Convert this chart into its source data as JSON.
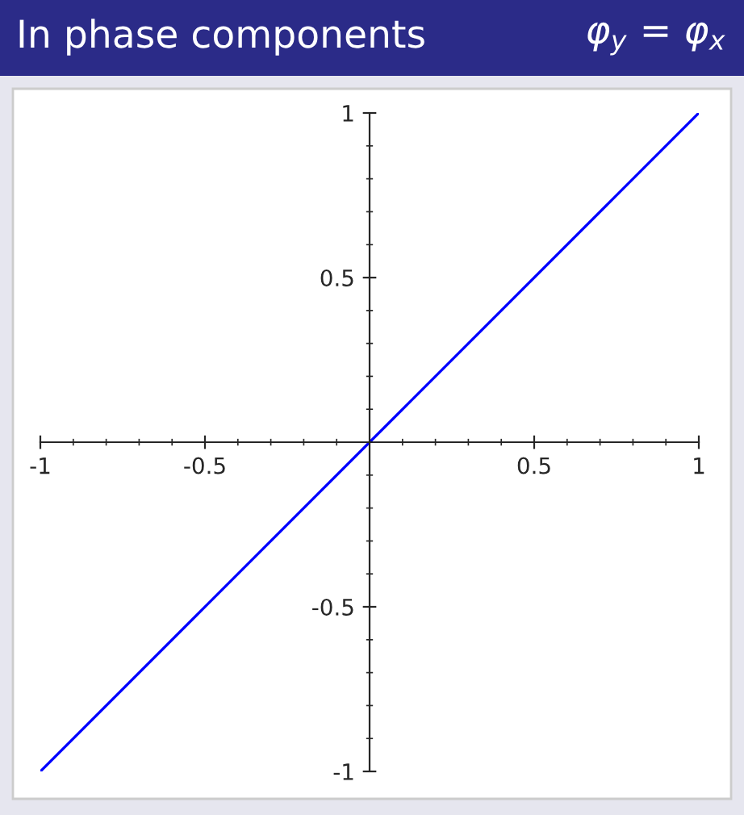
{
  "chart_data": {
    "type": "line",
    "title": "In phase components",
    "subtitle": "φ$_{y}$ = φ$_{x}$",
    "x": [
      -1,
      1
    ],
    "series": [
      {
        "color": "#0000ff",
        "values": [
          -1,
          1
        ]
      }
    ],
    "xlim": [
      -1.0,
      1.0
    ],
    "ylim": [
      -1.0,
      1.0
    ],
    "xticks": [
      -1,
      -0.5,
      0.5,
      1
    ],
    "yticks": [
      -1,
      -0.5,
      0.5,
      1
    ],
    "grid": false,
    "legend": false,
    "line_style": "solid",
    "marker": "none"
  }
}
